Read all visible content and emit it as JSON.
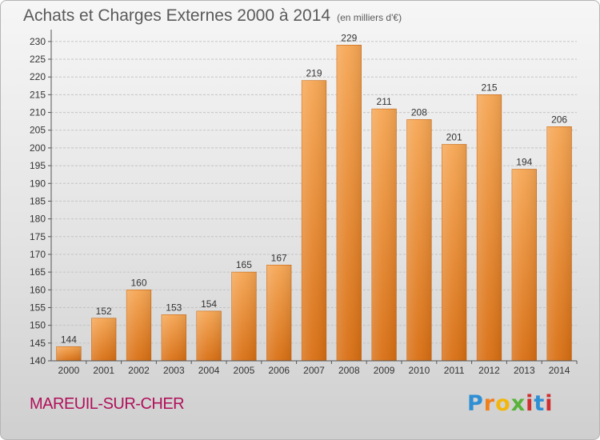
{
  "chart_data": {
    "type": "bar",
    "title": "Achats et Charges Externes 2000 à 2014",
    "subtitle": "(en milliers d'€)",
    "categories": [
      "2000",
      "2001",
      "2002",
      "2003",
      "2004",
      "2005",
      "2006",
      "2007",
      "2008",
      "2009",
      "2010",
      "2011",
      "2012",
      "2013",
      "2014"
    ],
    "values": [
      144,
      152,
      160,
      153,
      154,
      165,
      167,
      219,
      229,
      211,
      208,
      201,
      215,
      194,
      206
    ],
    "ylim": [
      140,
      232
    ],
    "yticks": [
      140,
      145,
      150,
      155,
      160,
      165,
      170,
      175,
      180,
      185,
      190,
      195,
      200,
      205,
      210,
      215,
      220,
      225,
      230
    ],
    "xlabel": "",
    "ylabel": "",
    "grid": true,
    "bar_color_top": "#f5a552",
    "bar_color_bottom": "#d86e12"
  },
  "footer": {
    "commune": "MAREUIL-SUR-CHER",
    "brand": "Proxiti"
  }
}
